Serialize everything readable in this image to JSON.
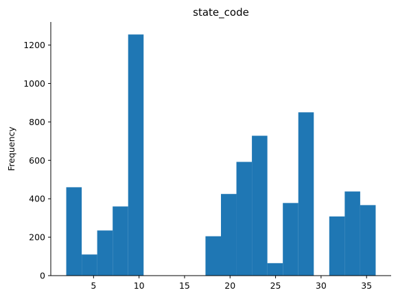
{
  "chart_data": {
    "type": "bar",
    "title": "state_code",
    "xlabel": "",
    "ylabel": "Frequency",
    "xlim": [
      0.3,
      37.7
    ],
    "ylim": [
      0,
      1320
    ],
    "x_ticks": [
      5,
      10,
      15,
      20,
      25,
      30,
      35
    ],
    "y_ticks": [
      0,
      200,
      400,
      600,
      800,
      1000,
      1200
    ],
    "grid": false,
    "legend": "none",
    "bar_color": "#1f77b4",
    "bins": [
      {
        "x0": 2.0,
        "x1": 3.7,
        "value": 460
      },
      {
        "x0": 3.7,
        "x1": 5.4,
        "value": 110
      },
      {
        "x0": 5.4,
        "x1": 7.1,
        "value": 235
      },
      {
        "x0": 7.1,
        "x1": 8.8,
        "value": 360
      },
      {
        "x0": 8.8,
        "x1": 10.5,
        "value": 1255
      },
      {
        "x0": 10.5,
        "x1": 12.2,
        "value": 0
      },
      {
        "x0": 12.2,
        "x1": 13.9,
        "value": 0
      },
      {
        "x0": 13.9,
        "x1": 15.6,
        "value": 0
      },
      {
        "x0": 15.6,
        "x1": 17.3,
        "value": 0
      },
      {
        "x0": 17.3,
        "x1": 19.0,
        "value": 205
      },
      {
        "x0": 19.0,
        "x1": 20.7,
        "value": 425
      },
      {
        "x0": 20.7,
        "x1": 22.4,
        "value": 592
      },
      {
        "x0": 22.4,
        "x1": 24.1,
        "value": 728
      },
      {
        "x0": 24.1,
        "x1": 25.8,
        "value": 65
      },
      {
        "x0": 25.8,
        "x1": 27.5,
        "value": 378
      },
      {
        "x0": 27.5,
        "x1": 29.2,
        "value": 850
      },
      {
        "x0": 29.2,
        "x1": 30.9,
        "value": 0
      },
      {
        "x0": 30.9,
        "x1": 32.6,
        "value": 308
      },
      {
        "x0": 32.6,
        "x1": 34.3,
        "value": 438
      },
      {
        "x0": 34.3,
        "x1": 36.0,
        "value": 367
      }
    ]
  }
}
